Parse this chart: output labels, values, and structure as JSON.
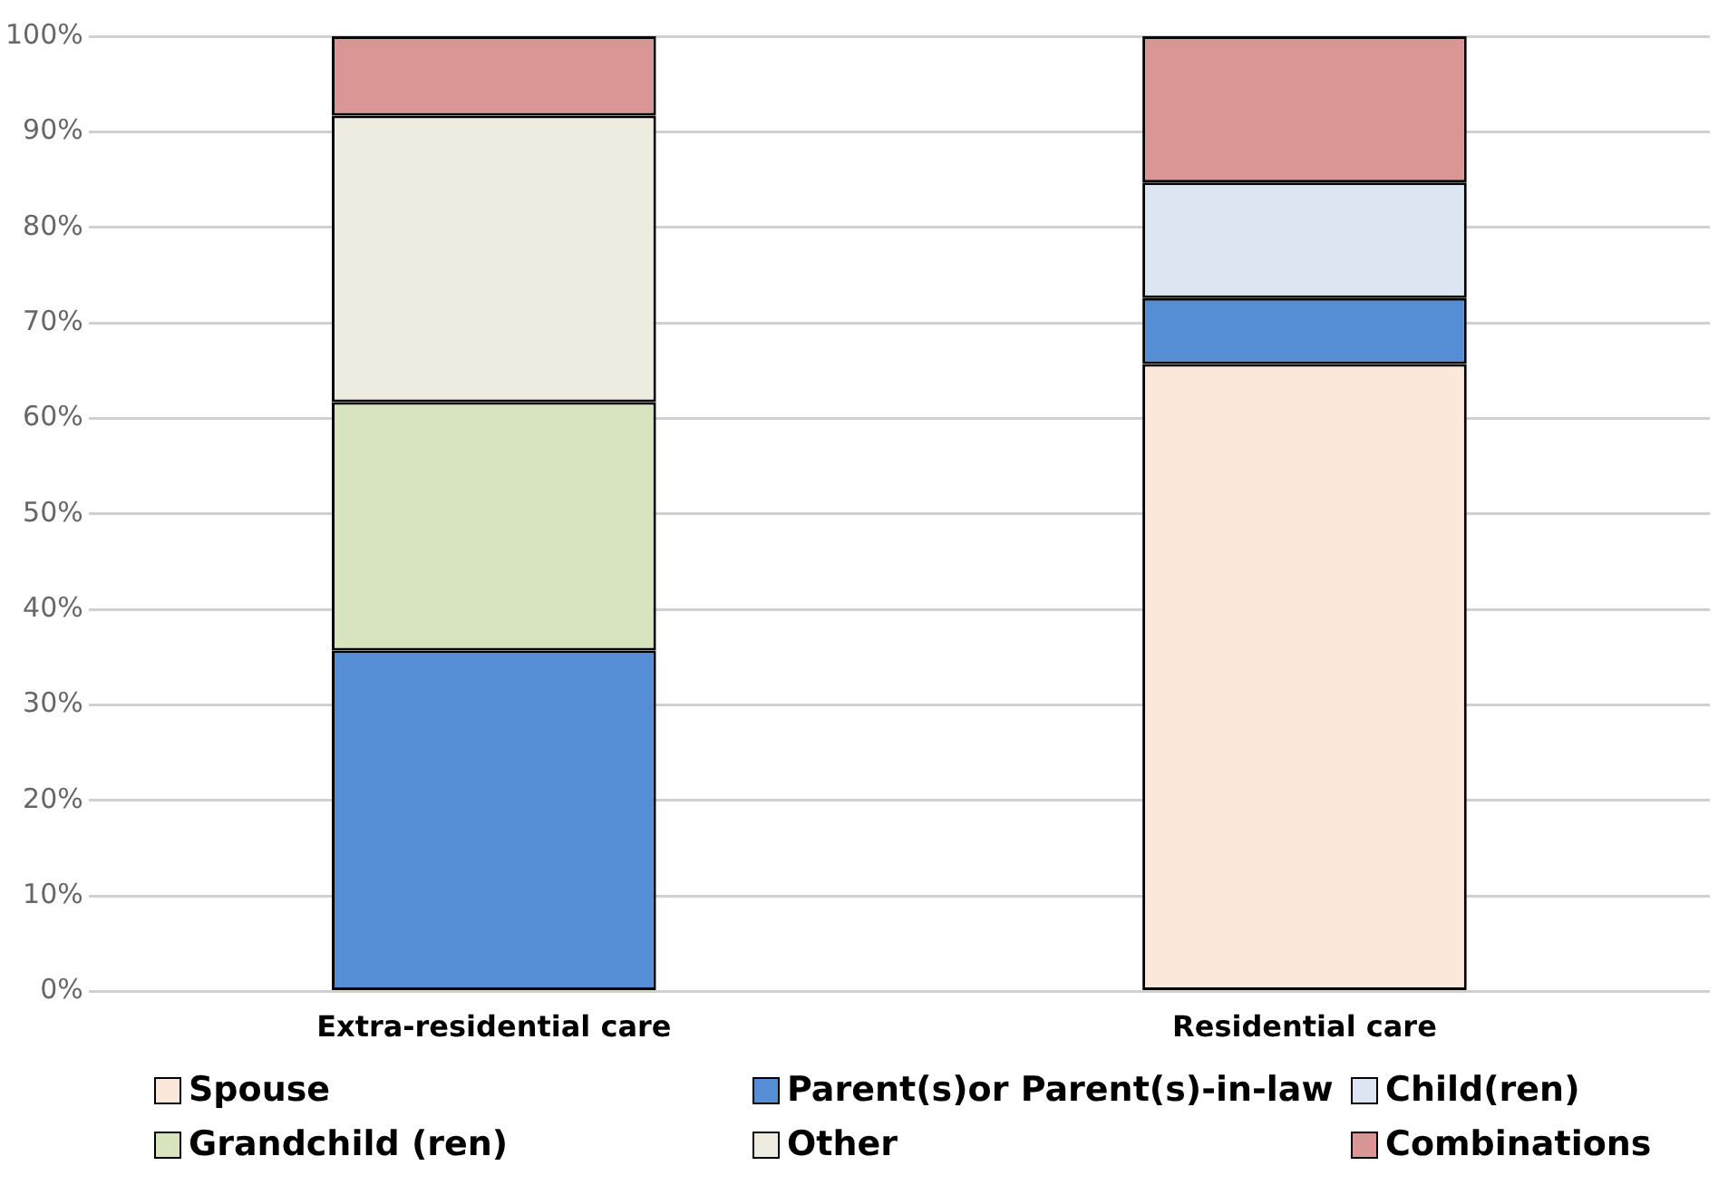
{
  "chart_data": {
    "type": "bar",
    "stacked": true,
    "categories": [
      "Extra-residential care",
      "Residential care"
    ],
    "series": [
      {
        "name": "Spouse",
        "color": "#fce8da",
        "values": [
          null,
          65.7
        ]
      },
      {
        "name": "Parent(s)or Parent(s)-in-law",
        "color": "#558ed5",
        "values": [
          35.7,
          6.9
        ]
      },
      {
        "name": "Child(ren)",
        "color": "#dce6f2",
        "values": [
          null,
          12.1
        ]
      },
      {
        "name": "Grandchild (ren)",
        "color": "#d7e4bd",
        "values": [
          26.0,
          null
        ]
      },
      {
        "name": "Other",
        "color": "#eeece1",
        "values": [
          30.0,
          null
        ]
      },
      {
        "name": "Combinations",
        "color": "#d99694",
        "values": [
          8.3,
          15.3
        ]
      }
    ],
    "ylim": [
      0,
      100
    ],
    "yticks": [
      {
        "value": 0,
        "label": "0%"
      },
      {
        "value": 10,
        "label": "10%"
      },
      {
        "value": 20,
        "label": "20%"
      },
      {
        "value": 30,
        "label": "30%"
      },
      {
        "value": 40,
        "label": "40%"
      },
      {
        "value": 50,
        "label": "50%"
      },
      {
        "value": 60,
        "label": "60%"
      },
      {
        "value": 70,
        "label": "70%"
      },
      {
        "value": 80,
        "label": "80%"
      },
      {
        "value": 90,
        "label": "90%"
      },
      {
        "value": 100,
        "label": "100%"
      }
    ],
    "grid": "y",
    "legend": "bottom"
  }
}
